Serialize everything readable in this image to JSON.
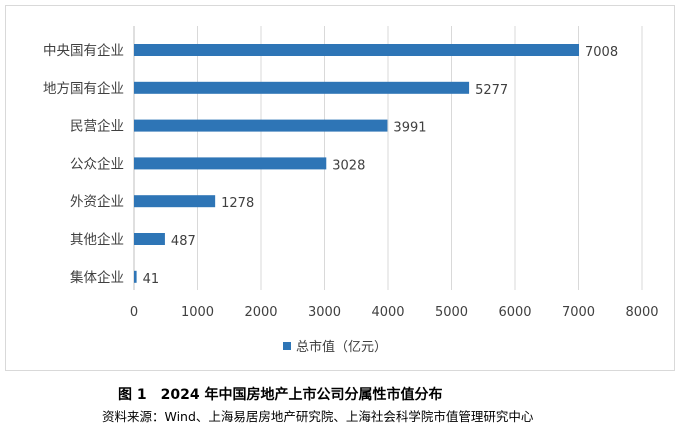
{
  "chart_data": {
    "type": "bar",
    "orientation": "horizontal",
    "categories": [
      "中央国有企业",
      "地方国有企业",
      "民营企业",
      "公众企业",
      "外资企业",
      "其他企业",
      "集体企业"
    ],
    "series": [
      {
        "name": "总市值（亿元）",
        "values": [
          7008,
          5277,
          3991,
          3028,
          1278,
          487,
          41
        ],
        "color": "#2e75b6"
      }
    ],
    "xlim": [
      0,
      8000
    ],
    "xticks": [
      0,
      1000,
      2000,
      3000,
      4000,
      5000,
      6000,
      7000,
      8000
    ],
    "grid": "vertical",
    "legend_position": "bottom",
    "data_labels": true
  },
  "caption": {
    "title": "图 1　2024 年中国房地产上市公司分属性市值分布",
    "source": "资料来源：Wind、上海易居房地产研究院、上海社会科学院市值管理研究中心"
  }
}
